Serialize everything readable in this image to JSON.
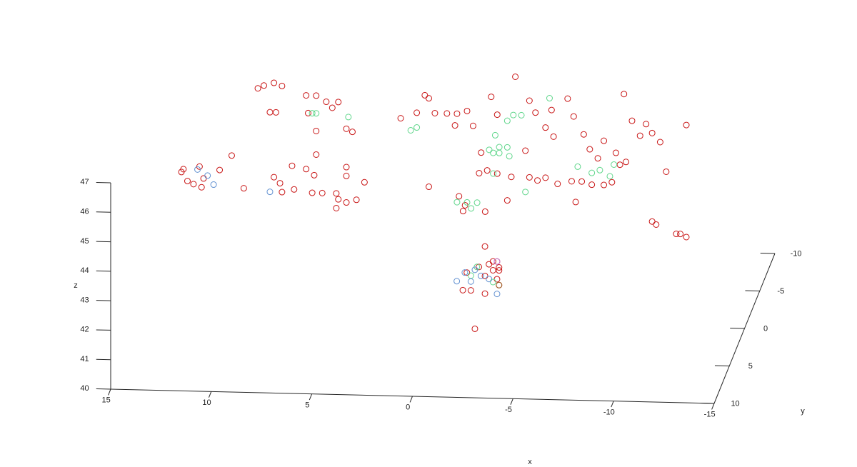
{
  "chart_data": {
    "type": "scatter3d",
    "xlabel": "x",
    "ylabel": "y",
    "zlabel": "z",
    "xlim": [
      -15,
      15
    ],
    "xticks": [
      -15,
      -10,
      -5,
      0,
      5,
      10,
      15
    ],
    "ylim": [
      -10,
      10
    ],
    "yticks": [
      -10,
      -5,
      0,
      5,
      10
    ],
    "zlim": [
      40,
      47
    ],
    "zticks": [
      40,
      41,
      42,
      43,
      44,
      45,
      46,
      47
    ],
    "series": [
      {
        "color": "#c81414",
        "x": [
          10.4,
          10.1,
          9.6,
          9.2,
          9.8,
          9.5,
          8.0,
          7.5,
          7.0,
          6.4,
          7.9,
          6.7,
          7.5,
          6.0,
          5.7,
          7.5,
          11.7,
          12.3,
          14.2,
          14.1,
          13.9,
          13.6,
          13.3,
          13.1,
          13.2,
          11.1,
          9.6,
          9.3,
          9.2,
          8.7,
          8.6,
          8.0,
          7.6,
          7.7,
          7.2,
          6.5,
          6.4,
          6.0,
          6.0,
          6.5,
          6.0,
          5.5,
          5.1,
          3.3,
          2.5,
          2.1,
          1.9,
          1.6,
          1.0,
          0.5,
          0.0,
          0.6,
          -0.3,
          1.9,
          0.4,
          0.1,
          0.2,
          -0.9,
          -1.2,
          -1.5,
          -2.4,
          -0.7,
          -0.6,
          -1.0,
          -1.5,
          -2.2,
          -2.0,
          -3.1,
          -3.4,
          -3.9,
          -4.2,
          -4.3,
          -2.9,
          -3.1,
          -3.5,
          -3.9,
          -4.5,
          -5.0,
          -5.3,
          -5.8,
          -6.1,
          -6.5,
          -6.8,
          -5.2,
          -5.7,
          -6.2,
          -6.8,
          -7.2,
          -7.6,
          -7.9,
          -7.4,
          -5.4,
          -7.8,
          -8.2,
          -8.9,
          -9.2,
          -9.6,
          -8.6,
          -9.9,
          -10.9,
          -9.2,
          -9.4,
          -10.4,
          -10.6,
          -10.9,
          -2.7,
          -3.1,
          -3.3,
          -2.9,
          -3.4,
          -3.1,
          -3.3,
          -2.7,
          -2.4,
          -1.8,
          -1.6,
          -2.0,
          -2.7,
          -3.4,
          -2.2,
          -3.4
        ],
        "y": [
          -8,
          -8,
          -8,
          -8,
          -8,
          -8,
          -8,
          -8,
          -8,
          -8,
          -8,
          -8,
          -8,
          -8,
          -8,
          -8,
          -8,
          -8,
          -8,
          -8,
          -8,
          -8,
          -8,
          -8,
          -8,
          -8,
          -8,
          -8,
          -8,
          -8,
          -8,
          -8,
          -8,
          -8,
          -8,
          -8,
          -8,
          -8,
          -8,
          -8,
          -8,
          -8,
          -8,
          -8,
          -8,
          -8,
          -8,
          -8,
          -8,
          -8,
          -8,
          -8,
          -8,
          -8,
          -8,
          -8,
          -8,
          -8,
          -8,
          -8,
          -8,
          -8,
          -8,
          -8,
          -8,
          -8,
          -8,
          -8,
          -8,
          -8,
          -8,
          -8,
          -8,
          -8,
          -8,
          -8,
          -8,
          -8,
          -8,
          -8,
          -8,
          -8,
          -8,
          -8,
          -8,
          -8,
          -8,
          -8,
          -8,
          -8,
          -8,
          -8,
          -8,
          -8,
          -8,
          -8,
          -8,
          -8,
          -8,
          -8,
          -8,
          -8,
          -8,
          -8,
          -8,
          4,
          4,
          4,
          4,
          4,
          4,
          4,
          4,
          4,
          4,
          4,
          4,
          4,
          4,
          4,
          4
        ],
        "z": [
          45.7,
          45.8,
          45.9,
          45.8,
          44.9,
          44.9,
          45.5,
          45.5,
          45.3,
          45.3,
          44.9,
          45.1,
          44.3,
          44.4,
          44.3,
          43.5,
          43.4,
          42.9,
          42.8,
          42.9,
          42.5,
          42.4,
          43.0,
          42.6,
          42.3,
          42.3,
          42.7,
          42.5,
          42.2,
          43.1,
          42.3,
          43.0,
          42.8,
          42.2,
          42.2,
          42.2,
          42.0,
          43.1,
          42.8,
          41.7,
          41.9,
          42.0,
          42.6,
          44.8,
          45.0,
          45.6,
          45.5,
          45.0,
          45.0,
          45.0,
          45.1,
          44.6,
          44.6,
          42.5,
          42.2,
          41.9,
          41.7,
          41.7,
          45.6,
          45.0,
          46.3,
          43.7,
          43.0,
          43.1,
          43.0,
          42.9,
          42.1,
          45.5,
          45.1,
          44.6,
          45.2,
          44.3,
          43.8,
          42.9,
          42.8,
          42.9,
          42.7,
          45.6,
          45.0,
          44.4,
          43.9,
          43.6,
          44.2,
          42.8,
          42.8,
          42.7,
          42.7,
          42.8,
          43.4,
          43.5,
          43.8,
          42.1,
          45.8,
          44.9,
          44.8,
          44.5,
          44.2,
          44.4,
          43.2,
          44.8,
          41.5,
          41.4,
          41.1,
          41.1,
          41.0,
          43.6,
          43.1,
          43.1,
          43.0,
          42.8,
          42.8,
          42.5,
          42.6,
          42.9,
          42.7,
          42.1,
          42.1,
          42.0,
          42.3,
          40.8,
          42.9
        ]
      },
      {
        "color": "#5ed68a",
        "x": [
          7.7,
          7.5,
          5.9,
          2.8,
          2.5,
          -2.0,
          -2.3,
          -2.7,
          -4.1,
          -1.4,
          -1.1,
          -1.3,
          -1.6,
          -2.0,
          -1.6,
          -2.1,
          -1.3,
          -2.9,
          0.5,
          0.0,
          -0.5,
          -0.2,
          -5.5,
          -6.2,
          -6.6,
          -7.1,
          -7.3,
          -2.3,
          -2.0,
          -3.1
        ],
        "y": [
          -8,
          -8,
          -8,
          -8,
          -8,
          -8,
          -8,
          -8,
          -8,
          -8,
          -8,
          -8,
          -8,
          -8,
          -8,
          -8,
          -8,
          -8,
          -8,
          -8,
          -8,
          -8,
          -8,
          -8,
          -8,
          -8,
          -8,
          4,
          4,
          4
        ],
        "z": [
          44.9,
          44.9,
          44.8,
          44.4,
          44.5,
          44.8,
          45.0,
          45.0,
          45.6,
          44.3,
          43.8,
          43.7,
          43.9,
          43.9,
          43.7,
          43.6,
          43.0,
          42.4,
          42.0,
          42.0,
          42.0,
          41.8,
          43.3,
          43.1,
          43.2,
          43.0,
          43.4,
          42.9,
          42.6,
          42.4
        ]
      },
      {
        "color": "#5f8fd0",
        "x": [
          12.9,
          12.6,
          9.8,
          13.4,
          -1.3,
          -1.7,
          -2.0,
          -2.5,
          -2.9,
          -3.3,
          -2.2
        ],
        "y": [
          -8,
          -8,
          -8,
          -8,
          4,
          4,
          4,
          4,
          4,
          4,
          4
        ],
        "z": [
          42.7,
          42.4,
          42.2,
          42.9,
          42.4,
          42.7,
          42.4,
          42.6,
          42.5,
          42.0,
          42.8
        ]
      },
      {
        "color": "#c47ad6",
        "x": [
          -3.3
        ],
        "y": [
          4
        ],
        "z": [
          43.1
        ]
      },
      {
        "color": "#9a6428",
        "x": [
          -3.4
        ],
        "y": [
          4
        ],
        "z": [
          42.3
        ]
      }
    ]
  }
}
